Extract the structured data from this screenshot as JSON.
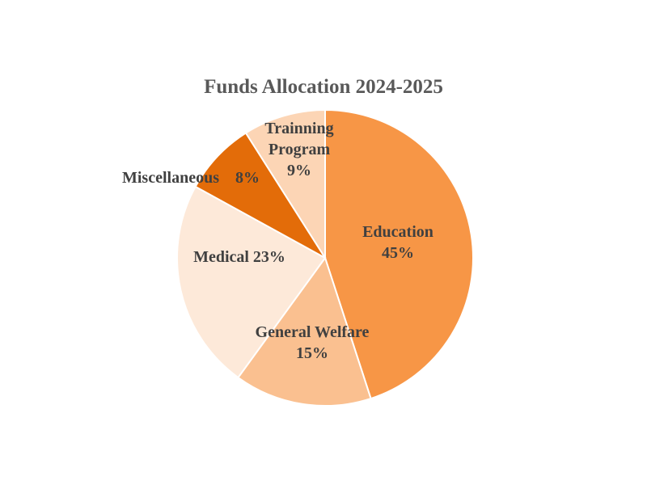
{
  "chart_data": {
    "type": "pie",
    "title": "Funds Allocation 2024-2025",
    "categories": [
      "Education",
      "General Welfare",
      "Medical",
      "Miscellaneous",
      "Trainning Program"
    ],
    "values": [
      45,
      15,
      23,
      8,
      9
    ],
    "labels": [
      [
        "Education",
        "45%"
      ],
      [
        "General Welfare",
        "15%"
      ],
      [
        "Medical 23%"
      ],
      [
        "Miscellaneous    8%"
      ],
      [
        "Trainning",
        "Program",
        "9%"
      ]
    ],
    "colors": [
      "#F79646",
      "#FAC090",
      "#FDE9D9",
      "#E36C09",
      "#FCD5B5"
    ],
    "legend": "none"
  }
}
